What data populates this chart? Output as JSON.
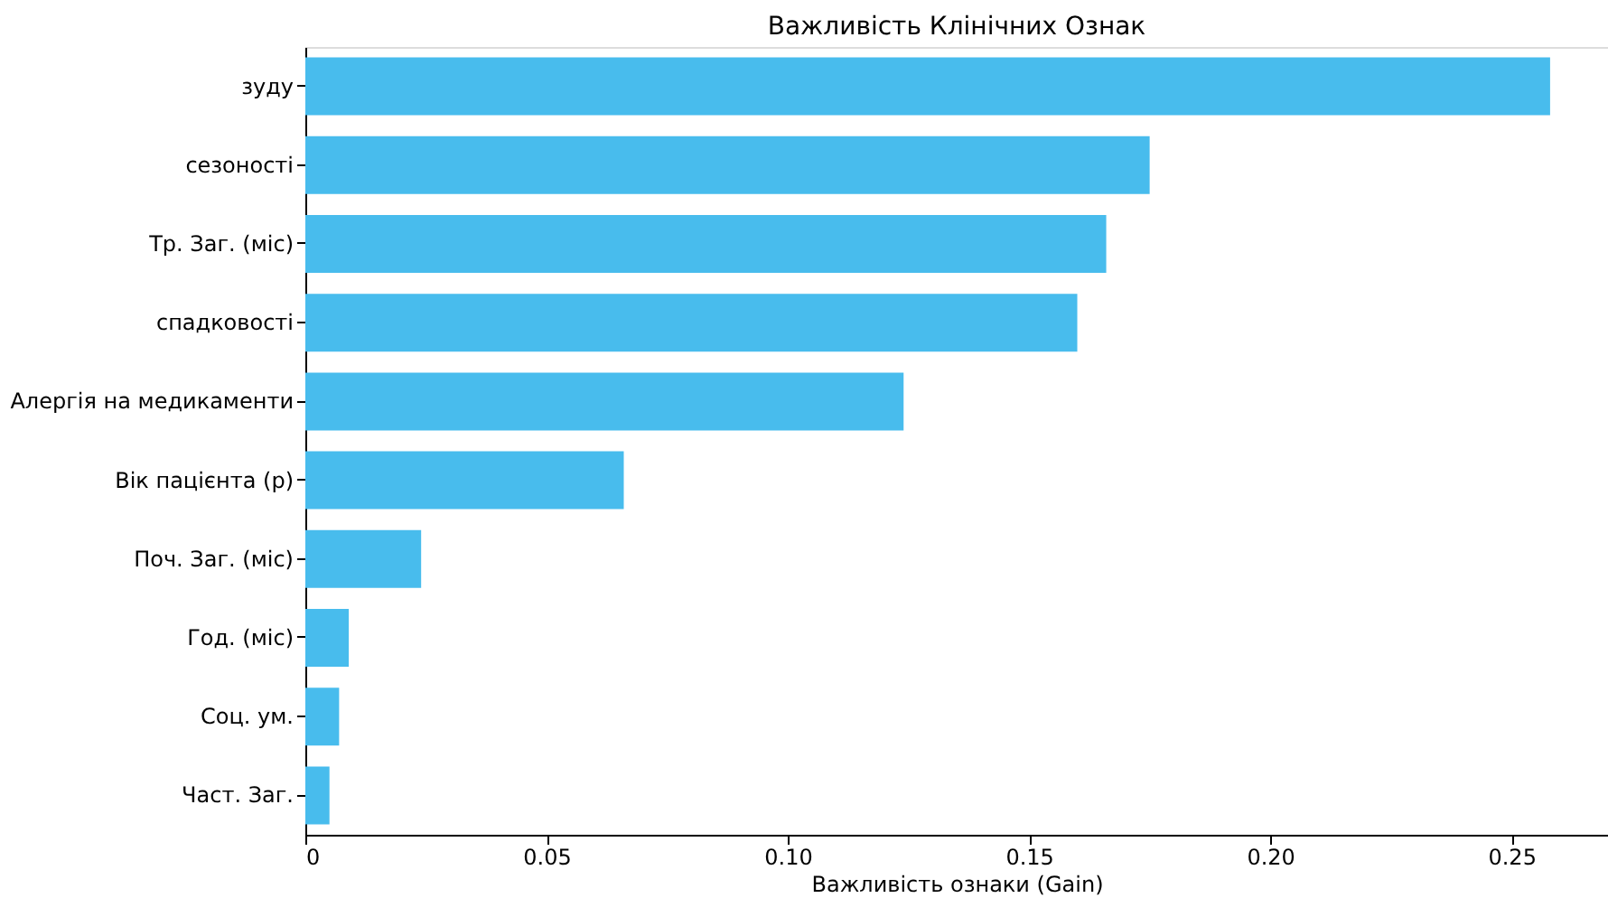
{
  "chart_data": {
    "type": "bar",
    "orientation": "horizontal",
    "title": "Важливість Клінічних Ознак",
    "xlabel": "Важливість ознаки (Gain)",
    "categories": [
      "зуду",
      "сезоності",
      "Тр. Заг. (міс)",
      "спадковості",
      "Алергія на медикаменти",
      "Вік пацієнта (р)",
      "Поч. Заг. (міс)",
      "Год. (міс)",
      "Соц. ум.",
      "Част. Заг."
    ],
    "values": [
      0.258,
      0.175,
      0.166,
      0.16,
      0.124,
      0.066,
      0.024,
      0.009,
      0.007,
      0.005
    ],
    "color": "#48bced",
    "xlim": [
      0,
      0.27
    ],
    "xticks": [
      0,
      {
        "value": 0.05,
        "label": "0.05"
      },
      {
        "value": 0.1,
        "label": "0.10"
      },
      {
        "value": 0.15,
        "label": "0.15"
      },
      {
        "value": 0.2,
        "label": "0.20"
      },
      {
        "value": 0.25,
        "label": "0.25"
      }
    ],
    "grid": false
  }
}
